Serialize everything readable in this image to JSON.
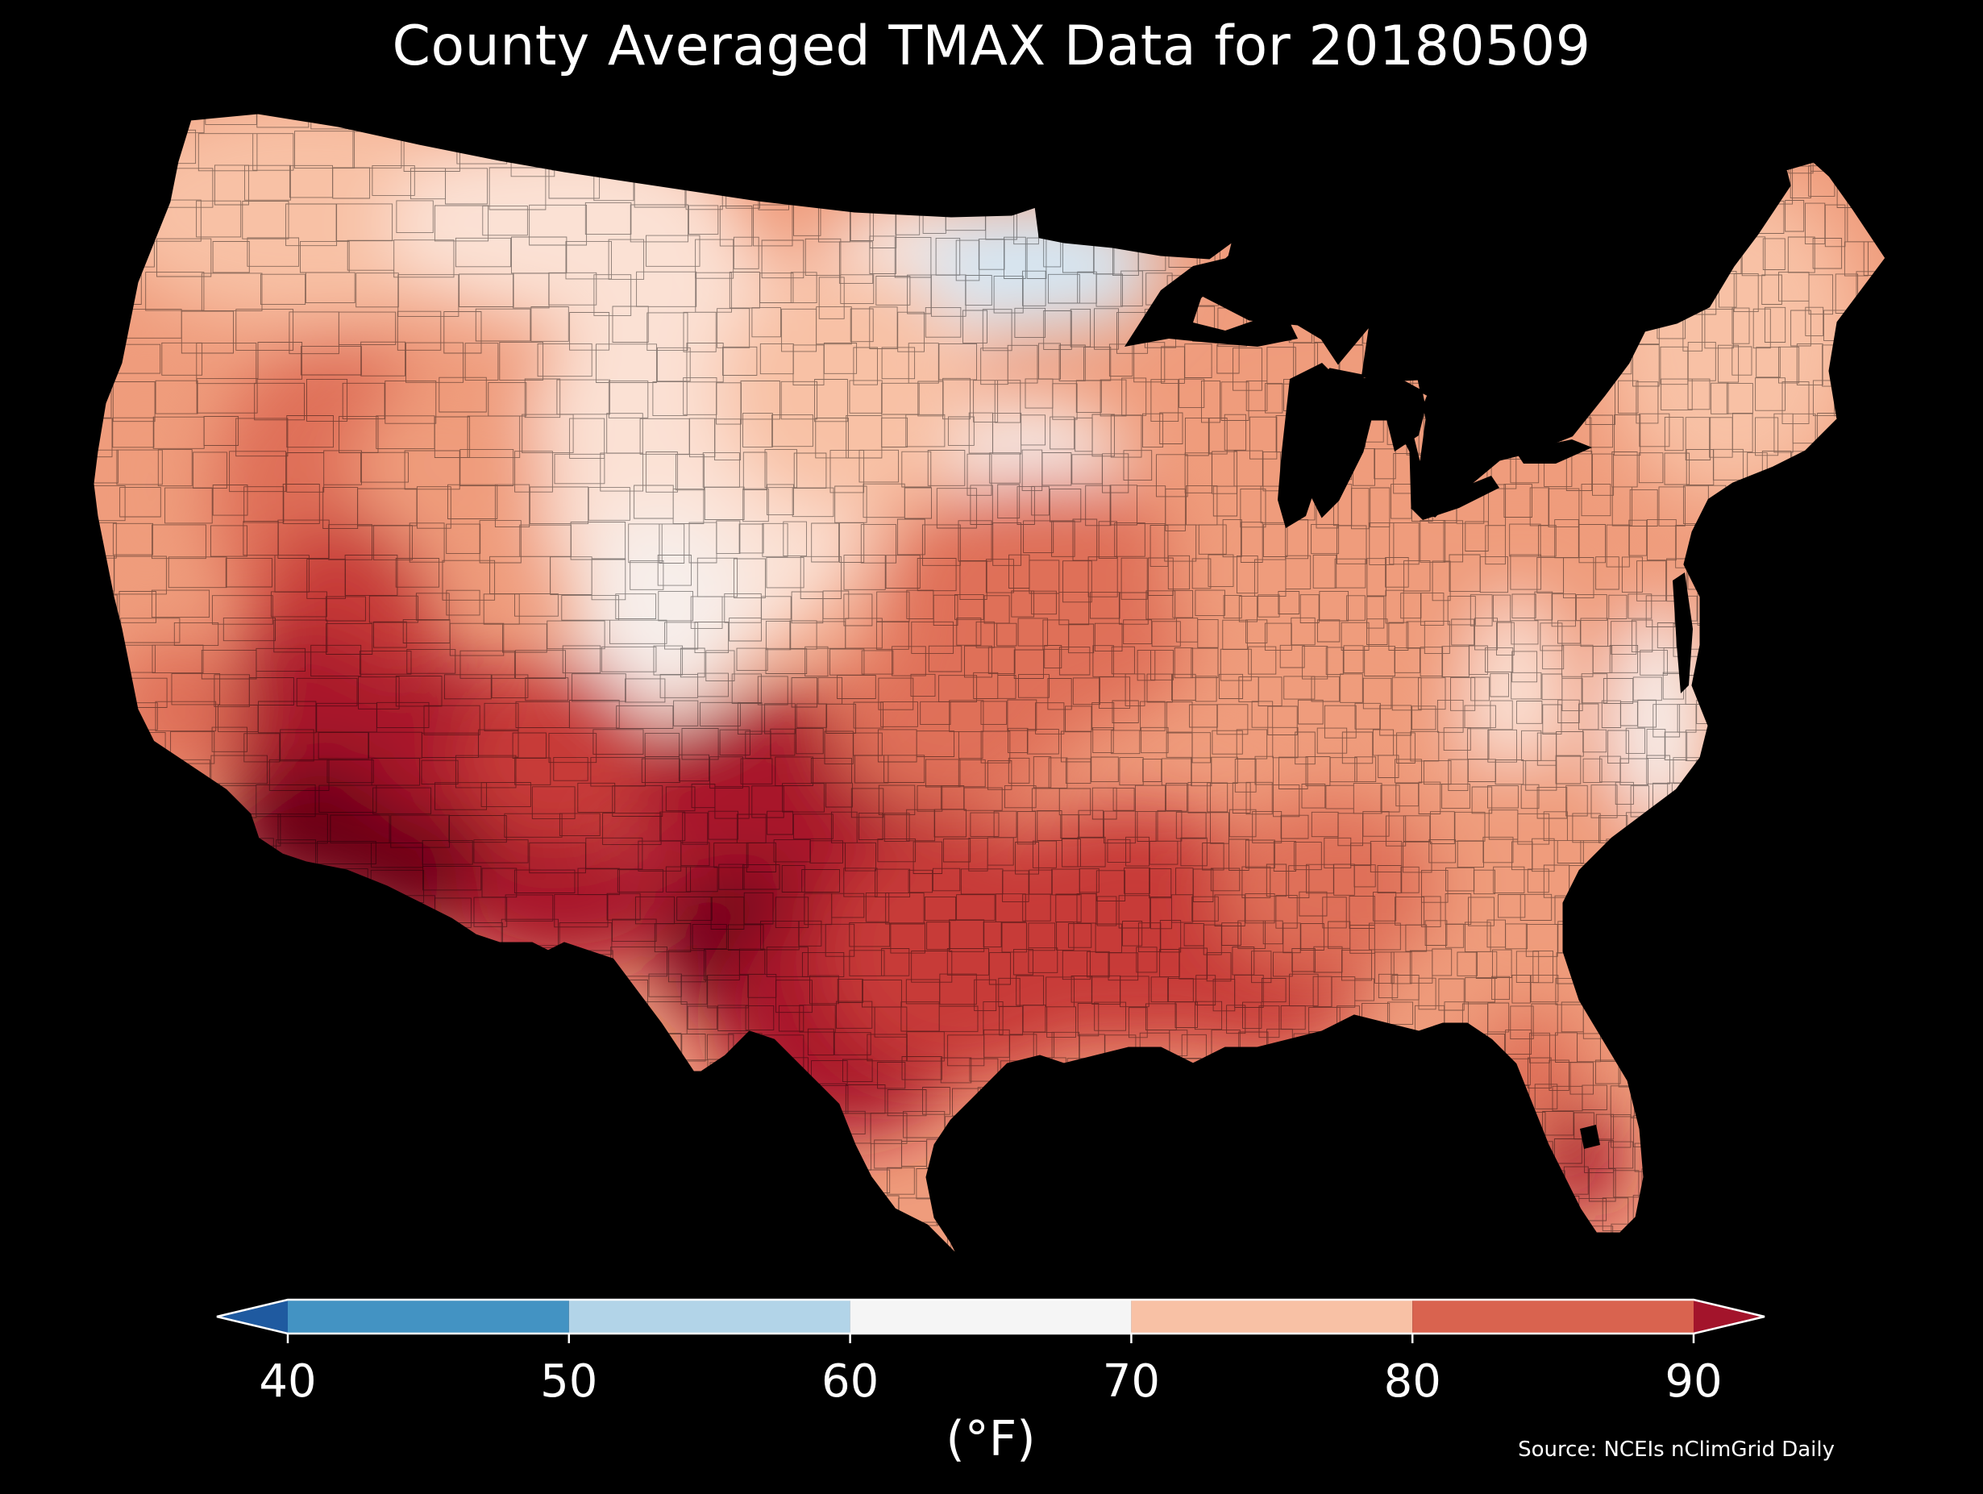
{
  "title": "County Averaged TMAX Data for 20180509",
  "unit_label": "(°F)",
  "source": "Source: NCEIs nClimGrid Daily",
  "colorbar": {
    "min": 40,
    "max": 90,
    "step": 10,
    "ticks": [
      "40",
      "50",
      "60",
      "70",
      "80",
      "90"
    ],
    "bins": [
      {
        "from": 40,
        "to": 50,
        "color": "#4393c3"
      },
      {
        "from": 50,
        "to": 60,
        "color": "#b2d4e8"
      },
      {
        "from": 60,
        "to": 70,
        "color": "#f5f5f5"
      },
      {
        "from": 70,
        "to": 80,
        "color": "#f8c1a5"
      },
      {
        "from": 80,
        "to": 90,
        "color": "#d9634f"
      }
    ],
    "under_color": "#1f5aa0",
    "over_color": "#a3142b",
    "extend": "both"
  },
  "map_colors": {
    "c50": "#d6e6f2",
    "c60": "#f7eeea",
    "c65": "#fbe1d4",
    "c70": "#f8c1a5",
    "c75": "#ef9c7c",
    "c80": "#df7058",
    "c85": "#c73b38",
    "c90": "#a8182b",
    "c95": "#6c0017"
  }
}
